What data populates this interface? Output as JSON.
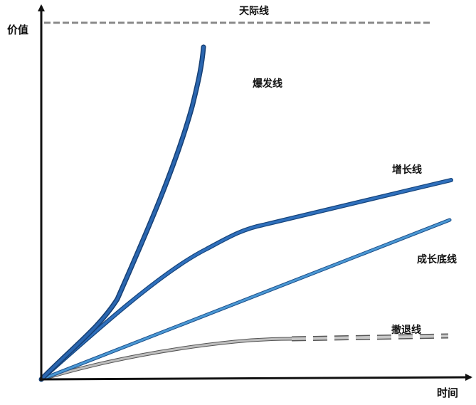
{
  "axes": {
    "y_label": "价值",
    "x_label": "时间"
  },
  "lines": {
    "ceiling": "天际线",
    "explosive": "爆发线",
    "growth": "增长线",
    "baseline": "成长底线",
    "decline": "撤退线"
  },
  "colors": {
    "axis": "#111111",
    "ceiling": "#8a8a8a",
    "explosive": "#1f5fb0",
    "growth": "#2a68b3",
    "baseline": "#3f8ac8",
    "decline_fill": "#bdbdbd",
    "decline_stroke": "#555555"
  }
}
